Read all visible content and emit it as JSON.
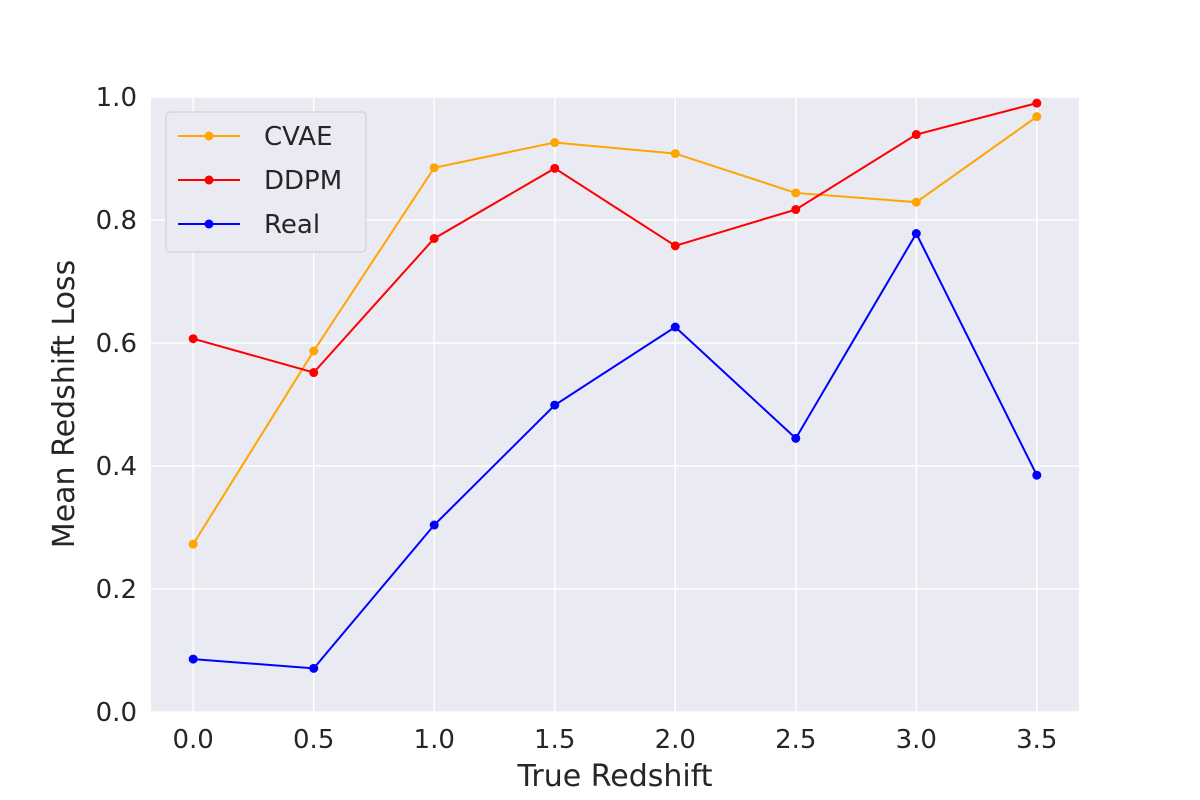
{
  "chart_data": {
    "type": "line",
    "xlabel": "True Redshift",
    "ylabel": "Mean Redshift Loss",
    "x": [
      0.0,
      0.5,
      1.0,
      1.5,
      2.0,
      2.5,
      3.0,
      3.5
    ],
    "xlim": [
      -0.175,
      3.675
    ],
    "ylim": [
      0.0,
      1.0
    ],
    "x_ticks": [
      "0.0",
      "0.5",
      "1.0",
      "1.5",
      "2.0",
      "2.5",
      "3.0",
      "3.5"
    ],
    "y_ticks": [
      "0.0",
      "0.2",
      "0.4",
      "0.6",
      "0.8",
      "1.0"
    ],
    "grid": true,
    "legend_position": "top-left",
    "series": [
      {
        "name": "CVAE",
        "color": "#FFA500",
        "values": [
          0.273,
          0.587,
          0.885,
          0.926,
          0.908,
          0.844,
          0.829,
          0.968
        ]
      },
      {
        "name": "DDPM",
        "color": "#FF0000",
        "values": [
          0.607,
          0.552,
          0.77,
          0.884,
          0.758,
          0.817,
          0.939,
          0.99
        ]
      },
      {
        "name": "Real",
        "color": "#0000FF",
        "values": [
          0.086,
          0.071,
          0.304,
          0.499,
          0.626,
          0.445,
          0.778,
          0.385
        ]
      }
    ]
  }
}
